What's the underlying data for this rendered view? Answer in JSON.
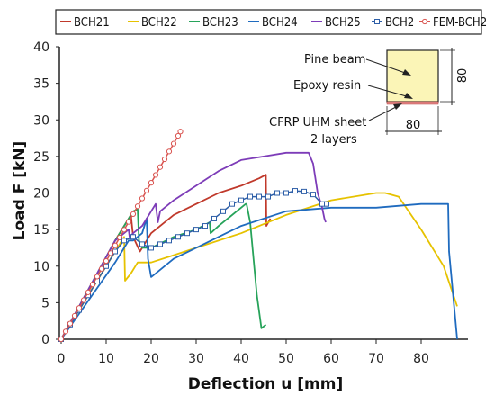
{
  "chart_data": {
    "type": "line",
    "title": "",
    "xlabel": "Deflection u [mm]",
    "ylabel": "Load F [kN]",
    "xlim": [
      0,
      90
    ],
    "ylim": [
      0,
      40
    ],
    "xticks": [
      "0",
      "10",
      "20",
      "30",
      "40",
      "50",
      "60",
      "70",
      "80"
    ],
    "yticks": [
      "0",
      "5",
      "10",
      "15",
      "20",
      "25",
      "30",
      "35",
      "40"
    ],
    "grid": false,
    "legend_position": "top",
    "series": [
      {
        "name": "BCH21",
        "color": "#c0392b",
        "marker": "none",
        "x": [
          0,
          4,
          8,
          12,
          15.5,
          16,
          17.5,
          20,
          25,
          30,
          35,
          40,
          44,
          45.5,
          45.6,
          46.5
        ],
        "y": [
          0,
          4.5,
          9,
          13.5,
          17,
          14,
          12,
          14.5,
          17,
          18.5,
          20,
          21,
          22,
          22.5,
          15.5,
          16.5
        ]
      },
      {
        "name": "BCH22",
        "color": "#e6c200",
        "marker": "none",
        "x": [
          0,
          4,
          8,
          12,
          14,
          14.2,
          15.5,
          17,
          20,
          25,
          30,
          40,
          50,
          60,
          70,
          72,
          75,
          80,
          85,
          88
        ],
        "y": [
          0,
          4,
          8,
          12,
          14,
          8,
          9,
          10.5,
          10.5,
          11.5,
          12.5,
          14.5,
          17,
          19,
          20,
          20,
          19.5,
          15,
          10,
          4.5
        ]
      },
      {
        "name": "BCH23",
        "color": "#27a35a",
        "marker": "none",
        "x": [
          0,
          4,
          8,
          12,
          16,
          17,
          17.3,
          18,
          20,
          25,
          30,
          33,
          33.2,
          35,
          41,
          41.2,
          42,
          43.5,
          44.5,
          45.5
        ],
        "y": [
          0,
          4.5,
          9,
          13.5,
          17.5,
          17.8,
          13.5,
          12.5,
          12.5,
          14,
          15,
          16,
          14.5,
          15.5,
          18.5,
          18.5,
          16,
          6,
          1.5,
          2
        ]
      },
      {
        "name": "BCH24",
        "color": "#1f6bbf",
        "marker": "none",
        "x": [
          0,
          4,
          8,
          12,
          14,
          15,
          16,
          18,
          19,
          19.3,
          20,
          21,
          25,
          30,
          40,
          50,
          60,
          70,
          80,
          86,
          86.2,
          88
        ],
        "y": [
          0,
          3.5,
          7,
          10.5,
          12.5,
          13.5,
          13.5,
          14.5,
          16.5,
          11,
          8.5,
          9,
          11,
          12.5,
          15.5,
          17.5,
          18,
          18,
          18.5,
          18.5,
          12,
          0
        ]
      },
      {
        "name": "BCH25",
        "color": "#7d3cb8",
        "marker": "none",
        "x": [
          0,
          4,
          8,
          12,
          15,
          15.2,
          16,
          18,
          21,
          21.5,
          22,
          25,
          30,
          35,
          40,
          45,
          50,
          55,
          56,
          57,
          58,
          58.5,
          58.8
        ],
        "y": [
          0,
          4.5,
          9,
          13.5,
          15,
          14,
          14.5,
          15.5,
          18.5,
          16,
          17.5,
          19,
          21,
          23,
          24.5,
          25,
          25.5,
          25.5,
          24,
          20,
          18,
          16.5,
          16
        ]
      },
      {
        "name": "BCH2",
        "color": "#2e5fa8",
        "marker": "square",
        "x": [
          0,
          2,
          4,
          6,
          8,
          10,
          12,
          14,
          16,
          18,
          20,
          22,
          24,
          26,
          28,
          30,
          32,
          34,
          36,
          38,
          40,
          42,
          44,
          46,
          48,
          50,
          52,
          54,
          56,
          58,
          59
        ],
        "y": [
          0,
          2,
          4,
          6,
          8,
          10,
          12,
          13.5,
          14,
          13,
          12.5,
          13,
          13.5,
          14,
          14.5,
          15,
          15.5,
          16.5,
          17.5,
          18.5,
          19,
          19.5,
          19.5,
          19.5,
          20,
          20,
          20.3,
          20.2,
          19.8,
          18.5,
          18.5
        ]
      },
      {
        "name": "FEM-BCH2",
        "color": "#d9534f",
        "marker": "circle",
        "x": [
          0,
          1,
          2,
          3,
          4,
          5,
          6,
          7,
          8,
          9,
          10,
          11,
          12,
          13,
          14,
          15,
          16,
          17,
          18,
          19,
          20,
          21,
          22,
          23,
          24,
          25,
          26,
          26.5
        ],
        "y": [
          0,
          1.07,
          2.14,
          3.21,
          4.28,
          5.35,
          6.42,
          7.49,
          8.56,
          9.63,
          10.7,
          11.77,
          12.84,
          13.91,
          14.98,
          16.05,
          17.12,
          18.19,
          19.26,
          20.33,
          21.4,
          22.47,
          23.54,
          24.61,
          25.68,
          26.75,
          27.82,
          28.4
        ]
      }
    ],
    "inset": {
      "labels": [
        "Pine beam",
        "Epoxy resin",
        "CFRP UHM sheet",
        "2 layers"
      ],
      "width_dim": "80",
      "height_dim": "80"
    }
  }
}
